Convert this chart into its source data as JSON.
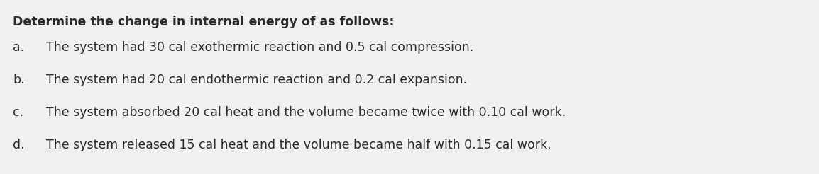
{
  "background_color": "#f0f0f0",
  "title": "Determine the change in internal energy of as follows:",
  "title_fontsize": 12.5,
  "title_fontweight": "bold",
  "items": [
    {
      "label": "a.",
      "text": "The system had 30 cal exothermic reaction and 0.5 cal compression."
    },
    {
      "label": "b.",
      "text": "The system had 20 cal endothermic reaction and 0.2 cal expansion."
    },
    {
      "label": "c.",
      "text": "The system absorbed 20 cal heat and the volume became twice with 0.10 cal work."
    },
    {
      "label": "d.",
      "text": "The system released 15 cal heat and the volume became half with 0.15 cal work."
    }
  ],
  "fontsize": 12.5,
  "fontcolor": "#2b2b2b",
  "fontfamily": "DejaVu Sans"
}
